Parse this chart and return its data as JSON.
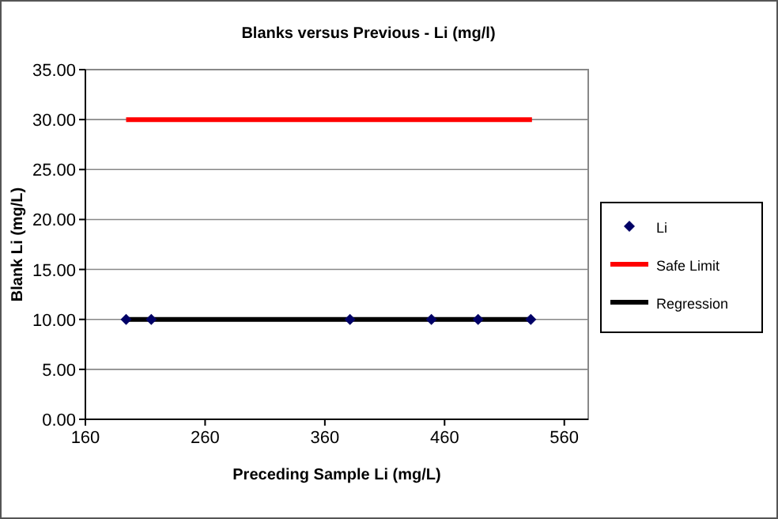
{
  "chart_data": {
    "type": "scatter",
    "title": "Blanks versus Previous - Li (mg/l)",
    "xlabel": "Preceding Sample Li (mg/L)",
    "ylabel": "Blank Li (mg/L)",
    "xlim": [
      160,
      580
    ],
    "xticks": [
      160,
      260,
      360,
      460,
      560
    ],
    "ylim": [
      0,
      35
    ],
    "yticks": [
      {
        "value": 0,
        "label": "0.00"
      },
      {
        "value": 5,
        "label": "5.00"
      },
      {
        "value": 10,
        "label": "10.00"
      },
      {
        "value": 15,
        "label": "15.00"
      },
      {
        "value": 20,
        "label": "20.00"
      },
      {
        "value": 25,
        "label": "25.00"
      },
      {
        "value": 30,
        "label": "30.00"
      },
      {
        "value": 35,
        "label": "35.00"
      }
    ],
    "grid": "y",
    "legend": "right",
    "series": [
      {
        "name": "Li",
        "marker": "diamond",
        "color": "#000066",
        "x": [
          194,
          215,
          381,
          449,
          488,
          532
        ],
        "values": [
          10,
          10,
          10,
          10,
          10,
          10
        ]
      },
      {
        "name": "Safe Limit",
        "type": "line",
        "marker": "none",
        "color": "#ff0000",
        "x": [
          194,
          533
        ],
        "values": [
          30,
          30
        ]
      },
      {
        "name": "Regression",
        "type": "line",
        "marker": "none",
        "color": "#000000",
        "x": [
          194,
          532
        ],
        "values": [
          10,
          10
        ]
      }
    ]
  }
}
